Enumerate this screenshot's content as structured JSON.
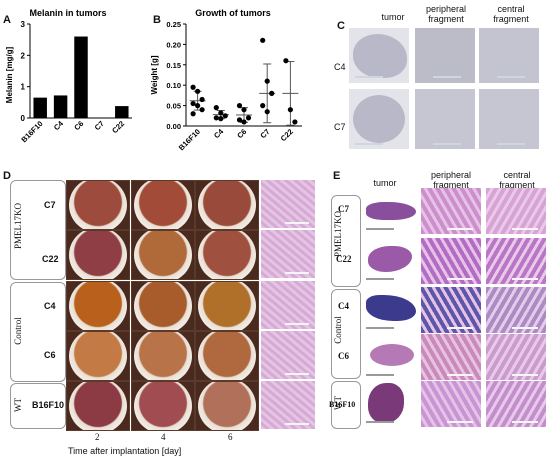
{
  "panels": {
    "A": "A",
    "B": "B",
    "C": "C",
    "D": "D",
    "E": "E"
  },
  "chart_data": [
    {
      "type": "bar",
      "title": "Melanin in tumors",
      "ylabel": "Melanin [mg/g]",
      "categories": [
        "B16F10",
        "C4",
        "C6",
        "C7",
        "C22"
      ],
      "values": [
        0.65,
        0.72,
        2.6,
        0.0,
        0.38
      ],
      "ylim": [
        0,
        3
      ],
      "yticks": [
        "0",
        "1",
        "2",
        "3"
      ],
      "color": "#000000"
    },
    {
      "type": "scatter",
      "title": "Growth of tumors",
      "ylabel": "Weight [g]",
      "categories": [
        "B16F10",
        "C4",
        "C6",
        "C7",
        "C22"
      ],
      "ylim": [
        0,
        0.25
      ],
      "yticks": [
        "0.00",
        "0.05",
        "0.10",
        "0.15",
        "0.20",
        "0.25"
      ],
      "points": [
        [
          0.095,
          0.085,
          0.065,
          0.055,
          0.05,
          0.04,
          0.03
        ],
        [
          0.045,
          0.032,
          0.025,
          0.02,
          0.018
        ],
        [
          0.05,
          0.04,
          0.02,
          0.015,
          0.01
        ],
        [
          0.21,
          0.11,
          0.08,
          0.05,
          0.035
        ],
        [
          0.16,
          0.04,
          0.01
        ]
      ],
      "means": [
        0.062,
        0.028,
        0.027,
        0.08,
        0.08
      ],
      "errors": [
        0.023,
        0.01,
        0.018,
        0.072,
        0.078
      ]
    }
  ],
  "panel_c": {
    "col_headers": [
      "tumor",
      "peripheral\nfragment",
      "central\nfragment"
    ],
    "row_labels": [
      "C4",
      "C7"
    ]
  },
  "panel_d": {
    "row_labels": [
      "C7",
      "C22",
      "C4",
      "C6",
      "B16F10"
    ],
    "group_labels": [
      "PMEL17KO",
      "Control",
      "WT"
    ],
    "x_ticks": [
      "2",
      "4",
      "6"
    ],
    "xlabel": "Time after implantation [day]"
  },
  "panel_e": {
    "col_headers": [
      "tumor",
      "peripheral\nfragment",
      "central\nfragment"
    ],
    "row_labels": [
      "C7",
      "C22",
      "C4",
      "C6",
      "B16F10"
    ],
    "group_labels": [
      "PMEL17KO",
      "Control",
      "WT"
    ]
  },
  "colors": {
    "he_pink": "#d9a6d4",
    "he_purple": "#8a4f9c",
    "egg_red": "#a3483a",
    "ihc_gray": "#c9c9d4"
  }
}
